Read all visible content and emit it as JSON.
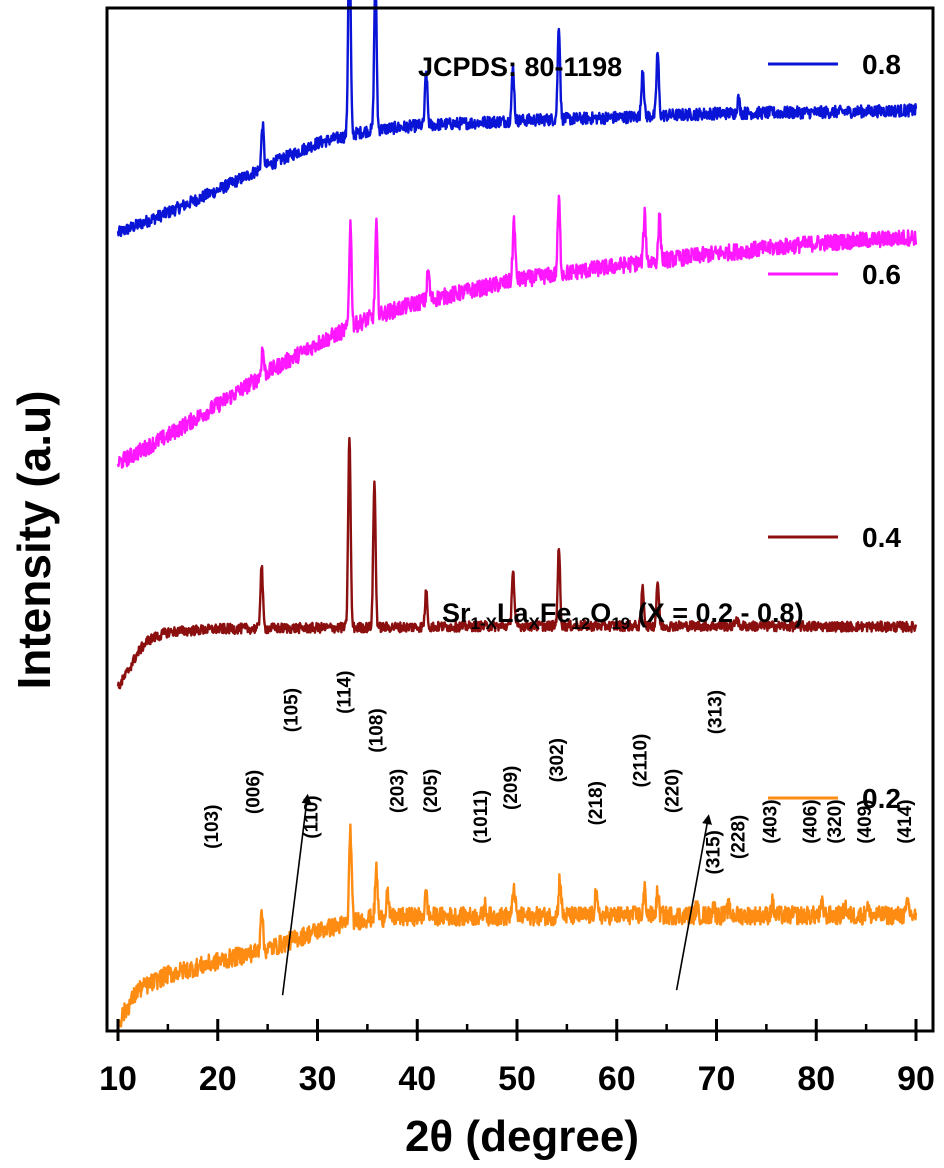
{
  "chart_data": {
    "type": "line",
    "title": "",
    "xlabel": "2θ (degree)",
    "ylabel": "Intensity (a.u)",
    "xlim": [
      10,
      90
    ],
    "xticks": [
      10,
      20,
      30,
      40,
      50,
      60,
      70,
      80,
      90
    ],
    "xtick_labels": [
      "10",
      "20",
      "30",
      "40",
      "50",
      "60",
      "70",
      "80",
      "90"
    ],
    "ylim": [
      0,
      1000
    ],
    "yticks_shown": false,
    "annotations": {
      "reference": "JCPDS: 80-1198",
      "formula": {
        "parts": [
          {
            "text": "Sr",
            "sub": false
          },
          {
            "text": "1-X",
            "sub": true
          },
          {
            "text": "La",
            "sub": false
          },
          {
            "text": "X",
            "sub": true
          },
          {
            "text": "Fe",
            "sub": false
          },
          {
            "text": "12",
            "sub": true
          },
          {
            "text": "O",
            "sub": false
          },
          {
            "text": "19",
            "sub": true
          },
          {
            "text": " (X = 0.2 - 0.8)",
            "sub": false
          }
        ]
      }
    },
    "series": [
      {
        "name": "0.8",
        "color": "#0a14d6",
        "baseline": [
          [
            10,
            780
          ],
          [
            15,
            800
          ],
          [
            20,
            822
          ],
          [
            25,
            846
          ],
          [
            30,
            868
          ],
          [
            35,
            880
          ],
          [
            40,
            885
          ],
          [
            50,
            890
          ],
          [
            60,
            893
          ],
          [
            70,
            897
          ],
          [
            80,
            898
          ],
          [
            90,
            900
          ]
        ],
        "noise": 6,
        "peaks": [
          [
            24.5,
            42
          ],
          [
            33.2,
            212
          ],
          [
            35.8,
            152
          ],
          [
            40.9,
            52
          ],
          [
            49.6,
            52
          ],
          [
            54.2,
            92
          ],
          [
            62.6,
            48
          ],
          [
            64.1,
            62
          ],
          [
            72.2,
            14
          ]
        ]
      },
      {
        "name": "0.6",
        "color": "#ff18ff",
        "baseline": [
          [
            10,
            555
          ],
          [
            15,
            582
          ],
          [
            20,
            612
          ],
          [
            25,
            644
          ],
          [
            30,
            672
          ],
          [
            35,
            696
          ],
          [
            40,
            712
          ],
          [
            50,
            734
          ],
          [
            60,
            748
          ],
          [
            70,
            760
          ],
          [
            80,
            770
          ],
          [
            90,
            776
          ]
        ],
        "noise": 8,
        "peaks": [
          [
            24.5,
            26
          ],
          [
            33.3,
            102
          ],
          [
            35.9,
            88
          ],
          [
            41.1,
            30
          ],
          [
            49.7,
            60
          ],
          [
            54.2,
            72
          ],
          [
            62.8,
            46
          ],
          [
            64.3,
            42
          ]
        ]
      },
      {
        "name": "0.4",
        "color": "#8b0f0f",
        "baseline": [
          [
            10,
            335
          ],
          [
            11,
            352
          ],
          [
            12,
            370
          ],
          [
            13,
            382
          ],
          [
            15,
            390
          ],
          [
            20,
            393
          ],
          [
            30,
            394
          ],
          [
            50,
            396
          ],
          [
            70,
            396
          ],
          [
            90,
            395
          ]
        ],
        "noise": 5,
        "peaks": [
          [
            24.4,
            62
          ],
          [
            33.2,
            188
          ],
          [
            35.7,
            142
          ],
          [
            40.9,
            34
          ],
          [
            49.6,
            55
          ],
          [
            54.2,
            75
          ],
          [
            62.6,
            38
          ],
          [
            64.1,
            44
          ],
          [
            72.0,
            8
          ]
        ]
      },
      {
        "name": "0.2",
        "color": "#ff8c12",
        "baseline": [
          [
            10,
            8
          ],
          [
            12,
            40
          ],
          [
            15,
            55
          ],
          [
            20,
            68
          ],
          [
            25,
            80
          ],
          [
            30,
            98
          ],
          [
            35,
            110
          ],
          [
            40,
            112
          ],
          [
            50,
            112
          ],
          [
            60,
            113
          ],
          [
            70,
            113
          ],
          [
            80,
            113
          ],
          [
            90,
            113
          ]
        ],
        "noise": 9,
        "peaks": [
          [
            24.4,
            44
          ],
          [
            33.3,
            92
          ],
          [
            35.9,
            48
          ],
          [
            37.0,
            25
          ],
          [
            40.9,
            22
          ],
          [
            46.8,
            10
          ],
          [
            49.7,
            30
          ],
          [
            54.3,
            38
          ],
          [
            57.9,
            22
          ],
          [
            62.8,
            25
          ],
          [
            64.1,
            22
          ],
          [
            68.0,
            8
          ],
          [
            69.7,
            10
          ],
          [
            71.2,
            8
          ],
          [
            75.6,
            12
          ],
          [
            80.6,
            10
          ],
          [
            82.9,
            10
          ],
          [
            85.1,
            10
          ],
          [
            89.2,
            12
          ]
        ]
      }
    ],
    "hkl_labels": [
      {
        "text": "(103)",
        "x": 20.0,
        "y": 178
      },
      {
        "text": "(006)",
        "x": 24.2,
        "y": 212
      },
      {
        "text": "(110)",
        "x": 30.0,
        "y": 188
      },
      {
        "text": "(105)",
        "x": 28.0,
        "y": 292
      },
      {
        "text": "(114)",
        "x": 33.3,
        "y": 310
      },
      {
        "text": "(108)",
        "x": 36.5,
        "y": 272
      },
      {
        "text": "(203)",
        "x": 38.6,
        "y": 213
      },
      {
        "text": "(205)",
        "x": 42.0,
        "y": 213
      },
      {
        "text": "(1011)",
        "x": 47.0,
        "y": 183
      },
      {
        "text": "(209)",
        "x": 50.0,
        "y": 216
      },
      {
        "text": "(302)",
        "x": 54.6,
        "y": 243
      },
      {
        "text": "(218)",
        "x": 58.5,
        "y": 201
      },
      {
        "text": "(2110)",
        "x": 63.0,
        "y": 238
      },
      {
        "text": "(220)",
        "x": 66.2,
        "y": 213
      },
      {
        "text": "(313)",
        "x": 70.5,
        "y": 290
      },
      {
        "text": "(315)",
        "x": 70.3,
        "y": 153
      },
      {
        "text": "(228)",
        "x": 72.8,
        "y": 168
      },
      {
        "text": "(403)",
        "x": 76.0,
        "y": 183
      },
      {
        "text": "(406)",
        "x": 80.0,
        "y": 183
      },
      {
        "text": "(320)",
        "x": 82.5,
        "y": 183
      },
      {
        "text": "(409)",
        "x": 85.5,
        "y": 183
      },
      {
        "text": "(414)",
        "x": 89.5,
        "y": 183
      }
    ],
    "hkl_arrows": [
      {
        "from": [
          26.5,
          35
        ],
        "to": [
          29.0,
          230
        ]
      },
      {
        "from": [
          66.0,
          40
        ],
        "to": [
          69.2,
          210
        ]
      }
    ],
    "legend": {
      "placement": "right",
      "entries": [
        "0.8",
        "0.6",
        "0.4",
        "0.2"
      ]
    }
  }
}
